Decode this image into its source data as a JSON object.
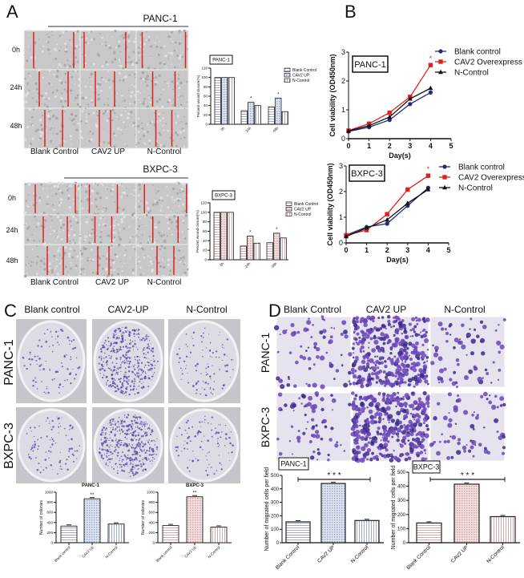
{
  "figure": {
    "panel_labels": [
      "A",
      "B",
      "C",
      "D"
    ],
    "panel_a": {
      "panc_title": "PANC-1",
      "bxpc_title": "BXPC-3",
      "rows": [
        "0h",
        "24h",
        "48h"
      ],
      "columns": [
        "Blank Control",
        "CAV2 UP",
        "N-Control"
      ]
    },
    "panel_c": {
      "columns": [
        "Blank control",
        "CAV2-UP",
        "N-Control"
      ],
      "rows": [
        "PANC-1",
        "BXPC-3"
      ]
    },
    "panel_d": {
      "columns": [
        "Blank Control",
        "CAV2 UP",
        "N-Control"
      ],
      "rows": [
        "PANC-1",
        "BXPC-3"
      ]
    },
    "colors": {
      "scratch_line": "#e02020",
      "stain": "#5b3fa8",
      "blank": "#1f2a7a",
      "cav2": "#e0201c",
      "ncontrol": "#111111"
    }
  },
  "chart_data": [
    {
      "type": "bar",
      "panel": "A",
      "title": "PANC-1",
      "ylabel": "Percent wound closure(%)",
      "categories": [
        "0h",
        "24h",
        "48h"
      ],
      "series": [
        {
          "name": "Blank Control",
          "values": [
            100,
            29,
            37
          ]
        },
        {
          "name": "CAV2 UP",
          "values": [
            100,
            47,
            56
          ]
        },
        {
          "name": "N-Control",
          "values": [
            100,
            40,
            27
          ]
        }
      ],
      "ylim": [
        0,
        120
      ],
      "yticks": [
        0,
        20,
        40,
        60,
        80,
        100,
        120
      ],
      "annotations": [
        "*",
        "*"
      ],
      "legend": "right"
    },
    {
      "type": "bar",
      "panel": "A",
      "title": "BXPC-3",
      "ylabel": "Percent wound closure(%)",
      "categories": [
        "0h",
        "24h",
        "48h"
      ],
      "series": [
        {
          "name": "Blank Control",
          "values": [
            100,
            29,
            36
          ]
        },
        {
          "name": "CAV2 UP",
          "values": [
            100,
            50,
            56
          ]
        },
        {
          "name": "N-Control",
          "values": [
            100,
            35,
            46
          ]
        }
      ],
      "ylim": [
        0,
        120
      ],
      "yticks": [
        0,
        20,
        40,
        60,
        80,
        100,
        120
      ],
      "annotations": [
        "*",
        "*"
      ],
      "legend": "right"
    },
    {
      "type": "line",
      "panel": "B",
      "title": "PANC-1",
      "xlabel": "Day(s)",
      "ylabel": "Cell viability (OD450nm)",
      "x": [
        0,
        1,
        2,
        3,
        4
      ],
      "series": [
        {
          "name": "Blank control",
          "values": [
            0.25,
            0.4,
            0.65,
            1.2,
            1.6
          ]
        },
        {
          "name": "CAV2 Overexpress",
          "values": [
            0.28,
            0.52,
            0.9,
            1.45,
            2.55
          ]
        },
        {
          "name": "N-Control",
          "values": [
            0.27,
            0.45,
            0.75,
            1.38,
            1.75
          ]
        }
      ],
      "xlim": [
        0,
        5
      ],
      "ylim": [
        0,
        3
      ],
      "xticks": [
        0,
        1,
        2,
        3,
        4,
        5
      ],
      "yticks": [
        0,
        1,
        2,
        3
      ],
      "annotations": [
        "*"
      ],
      "legend": "top-right"
    },
    {
      "type": "line",
      "panel": "B",
      "title": "BXPC-3",
      "xlabel": "Day(s)",
      "ylabel": "Cell viability (OD450nm)",
      "x": [
        0,
        1,
        2,
        3,
        4
      ],
      "series": [
        {
          "name": "Blank control",
          "values": [
            0.3,
            0.62,
            0.75,
            1.45,
            2.15
          ]
        },
        {
          "name": "CAV2 Overexpress",
          "values": [
            0.3,
            0.5,
            1.12,
            2.08,
            2.62
          ]
        },
        {
          "name": "N-Control",
          "values": [
            0.25,
            0.58,
            0.9,
            1.55,
            2.08
          ]
        }
      ],
      "xlim": [
        0,
        5
      ],
      "ylim": [
        0,
        3
      ],
      "xticks": [
        0,
        1,
        2,
        3,
        4,
        5
      ],
      "yticks": [
        0,
        1,
        2,
        3
      ],
      "annotations": [
        "*"
      ],
      "legend": "top-right"
    },
    {
      "type": "bar",
      "panel": "C",
      "title": "PANC-1",
      "ylabel": "Number of colonies",
      "categories": [
        "Blank control",
        "CAV2 Up",
        "N-Control"
      ],
      "values": [
        330,
        870,
        370
      ],
      "ylim": [
        0,
        1000
      ],
      "yticks": [
        0,
        200,
        400,
        600,
        800,
        1000
      ],
      "annotations": [
        "**"
      ]
    },
    {
      "type": "bar",
      "panel": "C",
      "title": "BXPC-3",
      "ylabel": "Number of colonies",
      "categories": [
        "Blank control",
        "CAV2 Up",
        "N-Control"
      ],
      "values": [
        340,
        910,
        310
      ],
      "ylim": [
        0,
        1000
      ],
      "yticks": [
        0,
        200,
        400,
        600,
        800,
        1000
      ],
      "annotations": [
        "**"
      ]
    },
    {
      "type": "bar",
      "panel": "D",
      "title": "PANC-1",
      "ylabel": "Number of migrated cells per field",
      "categories": [
        "Blank Control",
        "CAV2 UP",
        "N-Control"
      ],
      "values": [
        155,
        440,
        165
      ],
      "ylim": [
        0,
        500
      ],
      "yticks": [
        0,
        100,
        200,
        300,
        400,
        500
      ],
      "annotations": [
        "* * *"
      ]
    },
    {
      "type": "bar",
      "panel": "D",
      "title": "BXPC-3",
      "ylabel": "Number of migrated cells per field",
      "categories": [
        "Blank Control",
        "CAV2 UP",
        "N-Control"
      ],
      "values": [
        140,
        415,
        185
      ],
      "ylim": [
        0,
        500
      ],
      "yticks": [
        0,
        100,
        200,
        300,
        400,
        500
      ],
      "annotations": [
        "* * *"
      ]
    }
  ]
}
